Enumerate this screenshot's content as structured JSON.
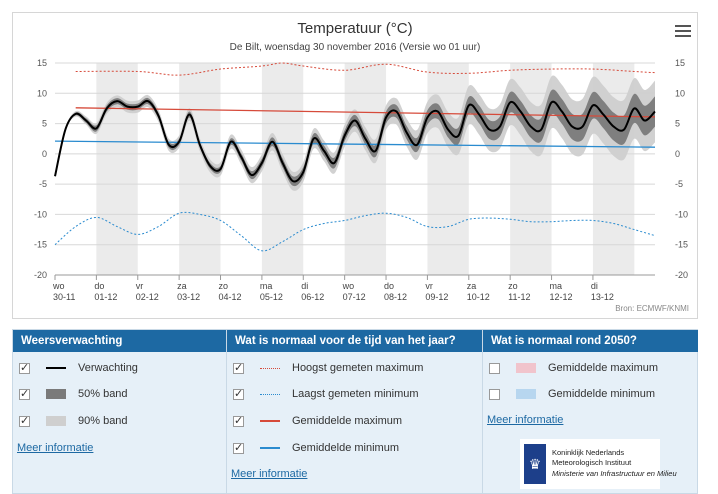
{
  "chart_data": {
    "type": "line",
    "title": "Temperatuur (°C)",
    "subtitle": "De Bilt, woensdag 30 november 2016 (Versie wo 01 uur)",
    "source": "Bron: ECMWF/KNMI",
    "ylim": [
      -20,
      15
    ],
    "y_ticks": [
      15,
      10,
      5,
      0,
      -5,
      -10,
      -15,
      -20
    ],
    "xlim": [
      0,
      14.5
    ],
    "days": [
      {
        "dow": "wo",
        "date": "30-11"
      },
      {
        "dow": "do",
        "date": "01-12"
      },
      {
        "dow": "vr",
        "date": "02-12"
      },
      {
        "dow": "za",
        "date": "03-12"
      },
      {
        "dow": "zo",
        "date": "04-12"
      },
      {
        "dow": "ma",
        "date": "05-12"
      },
      {
        "dow": "di",
        "date": "06-12"
      },
      {
        "dow": "wo",
        "date": "07-12"
      },
      {
        "dow": "do",
        "date": "08-12"
      },
      {
        "dow": "vr",
        "date": "09-12"
      },
      {
        "dow": "za",
        "date": "10-12"
      },
      {
        "dow": "zo",
        "date": "11-12"
      },
      {
        "dow": "ma",
        "date": "12-12"
      },
      {
        "dow": "di",
        "date": "13-12"
      }
    ],
    "series": [
      {
        "name": "Verwachting",
        "x": [
          0,
          0.25,
          0.5,
          0.75,
          1,
          1.25,
          1.5,
          1.75,
          2,
          2.25,
          2.5,
          2.75,
          3,
          3.25,
          3.5,
          3.75,
          4,
          4.25,
          4.5,
          4.75,
          5,
          5.25,
          5.5,
          5.75,
          6,
          6.25,
          6.5,
          6.75,
          7,
          7.25,
          7.5,
          7.75,
          8,
          8.25,
          8.5,
          8.75,
          9,
          9.25,
          9.5,
          9.75,
          10,
          10.25,
          10.5,
          10.75,
          11,
          11.25,
          11.5,
          11.75,
          12,
          12.25,
          12.5,
          12.75,
          13,
          13.25,
          13.5,
          13.75,
          14,
          14.25,
          14.5
        ],
        "values": [
          -3.7,
          4,
          6.6,
          5.5,
          4.2,
          7.5,
          8.7,
          7.8,
          7.8,
          8.7,
          6.3,
          1.5,
          2,
          6.5,
          1.5,
          -2,
          -2.5,
          2,
          -0.5,
          -3.5,
          -1.5,
          2,
          -1.5,
          -4.5,
          -3,
          2.5,
          0.5,
          -1.5,
          3,
          5.5,
          2.5,
          0.5,
          6,
          7,
          3.5,
          1.5,
          6,
          7,
          4,
          3,
          8,
          6.5,
          4,
          4.5,
          8.5,
          7,
          4.5,
          4,
          8.5,
          7,
          4.5,
          4.5,
          8,
          6.5,
          4.5,
          4,
          7.5,
          5.5,
          7
        ]
      },
      {
        "name": "Hoogst gemeten maximum",
        "x": [
          0.5,
          2,
          3,
          4,
          5,
          5.5,
          6,
          7,
          8,
          9,
          10,
          11,
          12,
          13,
          14,
          14.5
        ],
        "values": [
          13.6,
          13.6,
          13,
          14,
          14.5,
          15,
          14.5,
          13.8,
          14.8,
          13.5,
          13.3,
          13.8,
          14,
          14,
          13.6,
          13.4
        ]
      },
      {
        "name": "Laagst gemeten minimum",
        "x": [
          0,
          0.5,
          1,
          1.5,
          2,
          2.5,
          3,
          3.5,
          4,
          4.5,
          5,
          5.5,
          6,
          6.5,
          7,
          7.5,
          8,
          8.5,
          9,
          9.5,
          10,
          10.5,
          11,
          11.5,
          12,
          12.5,
          13,
          13.5,
          14,
          14.5
        ],
        "values": [
          -15,
          -12,
          -10.5,
          -12,
          -13.3,
          -12,
          -9.8,
          -10,
          -11,
          -13.5,
          -16,
          -14.5,
          -12.5,
          -11.5,
          -11,
          -10.2,
          -9.8,
          -10.5,
          -12,
          -12,
          -10.8,
          -10.6,
          -10.8,
          -11.2,
          -11.2,
          -11,
          -11,
          -11.5,
          -12.5,
          -13.5
        ]
      },
      {
        "name": "Gemiddelde maximum",
        "x": [
          0.5,
          14.5
        ],
        "values": [
          7.6,
          6.1
        ]
      },
      {
        "name": "Gemiddelde minimum",
        "x": [
          0,
          14.5
        ],
        "values": [
          2.1,
          1.1
        ]
      }
    ],
    "band50_halfwidth": [
      0,
      0.5,
      0.5,
      0.5,
      0.5,
      0.7,
      0.8,
      0.9,
      1,
      1.2,
      1.4,
      1.7,
      2,
      2.2,
      2.4,
      2.6
    ],
    "band90_halfwidth": [
      0,
      0.9,
      1,
      1,
      1.1,
      1.4,
      1.6,
      1.8,
      2,
      2.6,
      3.2,
      3.8,
      4.3,
      4.7,
      5,
      5.2
    ]
  },
  "colors": {
    "expectation": "#000000",
    "band50": "#7a7a7a",
    "band90": "#cfcfcf",
    "hist_max": "#d64a3a",
    "hist_min": "#2a8bcf",
    "avg_max": "#d64a3a",
    "avg_min": "#2a8bcf",
    "alt_day": "#ebebeb",
    "header_blue": "#1d69a3"
  },
  "legend": {
    "col1": {
      "heading": "Weersverwachting",
      "items": [
        {
          "label": "Verwachting",
          "checked": true
        },
        {
          "label": "50% band",
          "checked": true
        },
        {
          "label": "90% band",
          "checked": true
        }
      ],
      "more": "Meer informatie"
    },
    "col2": {
      "heading": "Wat is normaal voor de tijd van het jaar?",
      "items": [
        {
          "label": "Hoogst gemeten maximum",
          "checked": true
        },
        {
          "label": "Laagst gemeten minimum",
          "checked": true
        },
        {
          "label": "Gemiddelde maximum",
          "checked": true
        },
        {
          "label": "Gemiddelde minimum",
          "checked": true
        }
      ],
      "more": "Meer informatie"
    },
    "col3": {
      "heading": "Wat is normaal rond 2050?",
      "items": [
        {
          "label": "Gemiddelde maximum",
          "checked": false
        },
        {
          "label": "Gemiddelde minimum",
          "checked": false
        }
      ],
      "more": "Meer informatie"
    }
  },
  "logo": {
    "line1": "Koninklijk Nederlands",
    "line2": "Meteorologisch Instituut",
    "line3": "Ministerie van Infrastructuur en Milieu"
  },
  "icons": {
    "menu": "hamburger-menu-icon",
    "logo_crest": "crest-icon"
  }
}
